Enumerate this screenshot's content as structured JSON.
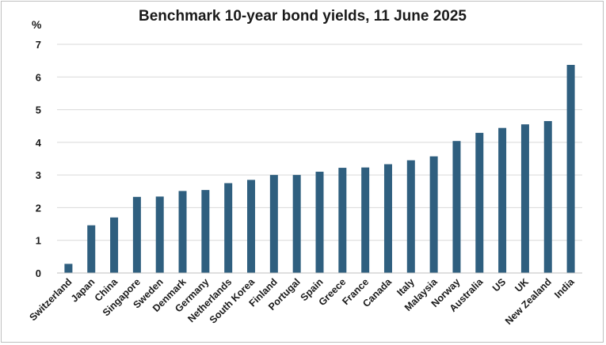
{
  "chart_data": {
    "type": "bar",
    "title": "Benchmark 10-year bond yields, 11 June 2025",
    "ylabel": "%",
    "xlabel": "",
    "ylim": [
      0,
      7
    ],
    "yticks": [
      0,
      1,
      2,
      3,
      4,
      5,
      6,
      7
    ],
    "grid": true,
    "bar_color": "#2f5f7f",
    "grid_color": "#d9d9d9",
    "categories": [
      "Switzerland",
      "Japan",
      "China",
      "Singapore",
      "Sweden",
      "Denmark",
      "Germany",
      "Netherlands",
      "South Korea",
      "Finland",
      "Portugal",
      "Spain",
      "Greece",
      "France",
      "Canada",
      "Italy",
      "Malaysia",
      "Norway",
      "Australia",
      "US",
      "UK",
      "New Zealand",
      "India"
    ],
    "values": [
      0.28,
      1.46,
      1.7,
      2.33,
      2.34,
      2.51,
      2.54,
      2.75,
      2.85,
      3.0,
      3.0,
      3.1,
      3.22,
      3.23,
      3.33,
      3.45,
      3.57,
      4.04,
      4.29,
      4.44,
      4.55,
      4.65,
      6.37
    ]
  }
}
